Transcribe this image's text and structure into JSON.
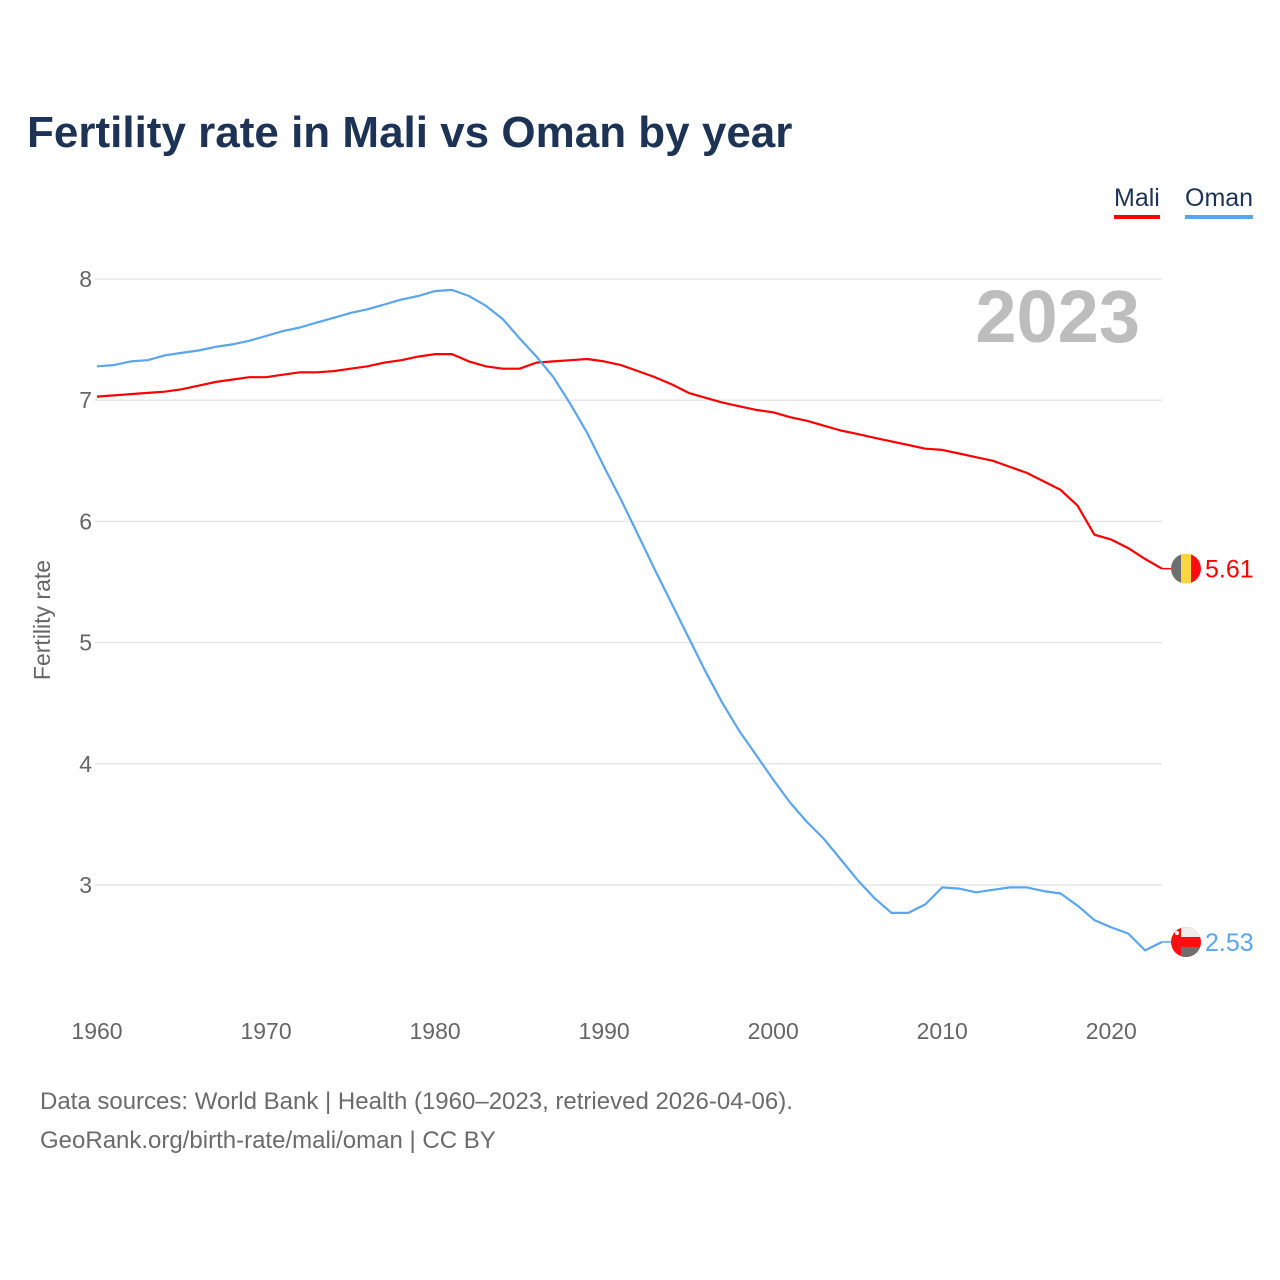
{
  "title": "Fertility rate in Mali vs Oman by year",
  "year_label": "2023",
  "footer": {
    "line1": "Data sources: World Bank | Health (1960–2023, retrieved 2026-04-06).",
    "line2": "GeoRank.org/birth-rate/mali/oman | CC BY"
  },
  "chart_data": {
    "type": "line",
    "title": "Fertility rate in Mali vs Oman by year",
    "xlabel": "",
    "ylabel": "Fertility rate",
    "xlim": [
      1960,
      2023
    ],
    "ylim": [
      2.2,
      8.1
    ],
    "x_ticks": [
      1960,
      1970,
      1980,
      1990,
      2000,
      2010,
      2020
    ],
    "y_ticks": [
      3,
      4,
      5,
      6,
      7,
      8
    ],
    "grid": true,
    "legend": "top-right",
    "x_start": 1960,
    "series": [
      {
        "name": "Mali",
        "color": "#ff0000",
        "end_label": "5.61",
        "flag_colors": [
          "#6e6e6e",
          "#fcd640",
          "#ff0d12"
        ],
        "values": [
          7.03,
          7.04,
          7.05,
          7.06,
          7.07,
          7.09,
          7.12,
          7.15,
          7.17,
          7.19,
          7.19,
          7.21,
          7.23,
          7.23,
          7.24,
          7.26,
          7.28,
          7.31,
          7.33,
          7.36,
          7.38,
          7.38,
          7.32,
          7.28,
          7.26,
          7.26,
          7.31,
          7.32,
          7.33,
          7.34,
          7.32,
          7.29,
          7.24,
          7.19,
          7.13,
          7.06,
          7.02,
          6.98,
          6.95,
          6.92,
          6.9,
          6.86,
          6.83,
          6.79,
          6.75,
          6.72,
          6.69,
          6.66,
          6.63,
          6.6,
          6.59,
          6.56,
          6.53,
          6.5,
          6.45,
          6.4,
          6.33,
          6.26,
          6.13,
          5.89,
          5.85,
          5.78,
          5.69,
          5.61
        ]
      },
      {
        "name": "Oman",
        "color": "#5aa5ee",
        "end_label": "2.53",
        "flag_colors": [
          "#ff0d12",
          "#eeeeee",
          "#6e6e6e"
        ],
        "values": [
          7.28,
          7.29,
          7.32,
          7.33,
          7.37,
          7.39,
          7.41,
          7.44,
          7.46,
          7.49,
          7.53,
          7.57,
          7.6,
          7.64,
          7.68,
          7.72,
          7.75,
          7.79,
          7.83,
          7.86,
          7.9,
          7.91,
          7.86,
          7.78,
          7.67,
          7.51,
          7.36,
          7.19,
          6.97,
          6.73,
          6.45,
          6.18,
          5.89,
          5.6,
          5.32,
          5.04,
          4.76,
          4.5,
          4.27,
          4.07,
          3.87,
          3.68,
          3.52,
          3.38,
          3.21,
          3.04,
          2.89,
          2.77,
          2.77,
          2.84,
          2.98,
          2.97,
          2.94,
          2.96,
          2.98,
          2.98,
          2.95,
          2.93,
          2.83,
          2.71,
          2.65,
          2.6,
          2.46,
          2.53
        ]
      }
    ]
  }
}
